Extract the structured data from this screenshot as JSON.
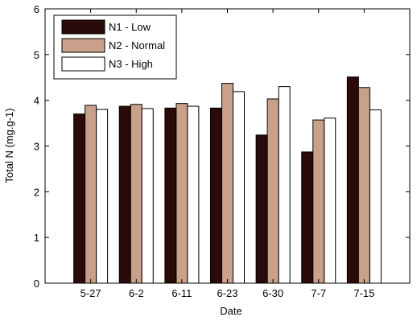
{
  "chart_data": {
    "type": "bar",
    "xlabel": "Date",
    "ylabel": "Total N (mg.g-1)",
    "ylim": [
      0,
      6
    ],
    "yticks": [
      0,
      1,
      2,
      3,
      4,
      5,
      6
    ],
    "grid": false,
    "legend_position": "top-left",
    "categories": [
      "5-27",
      "6-2",
      "6-11",
      "6-23",
      "6-30",
      "7-7",
      "7-15"
    ],
    "series": [
      {
        "name": "N1 - Low",
        "color": "#2b0a0a",
        "values": [
          3.7,
          3.87,
          3.83,
          3.83,
          3.24,
          2.87,
          4.51
        ]
      },
      {
        "name": "N2 - Normal",
        "color": "#c9a089",
        "values": [
          3.89,
          3.91,
          3.93,
          4.37,
          4.03,
          3.57,
          4.28
        ]
      },
      {
        "name": "N3 - High",
        "color": "#ffffff",
        "values": [
          3.8,
          3.82,
          3.87,
          4.19,
          4.3,
          3.61,
          3.79
        ]
      }
    ]
  }
}
